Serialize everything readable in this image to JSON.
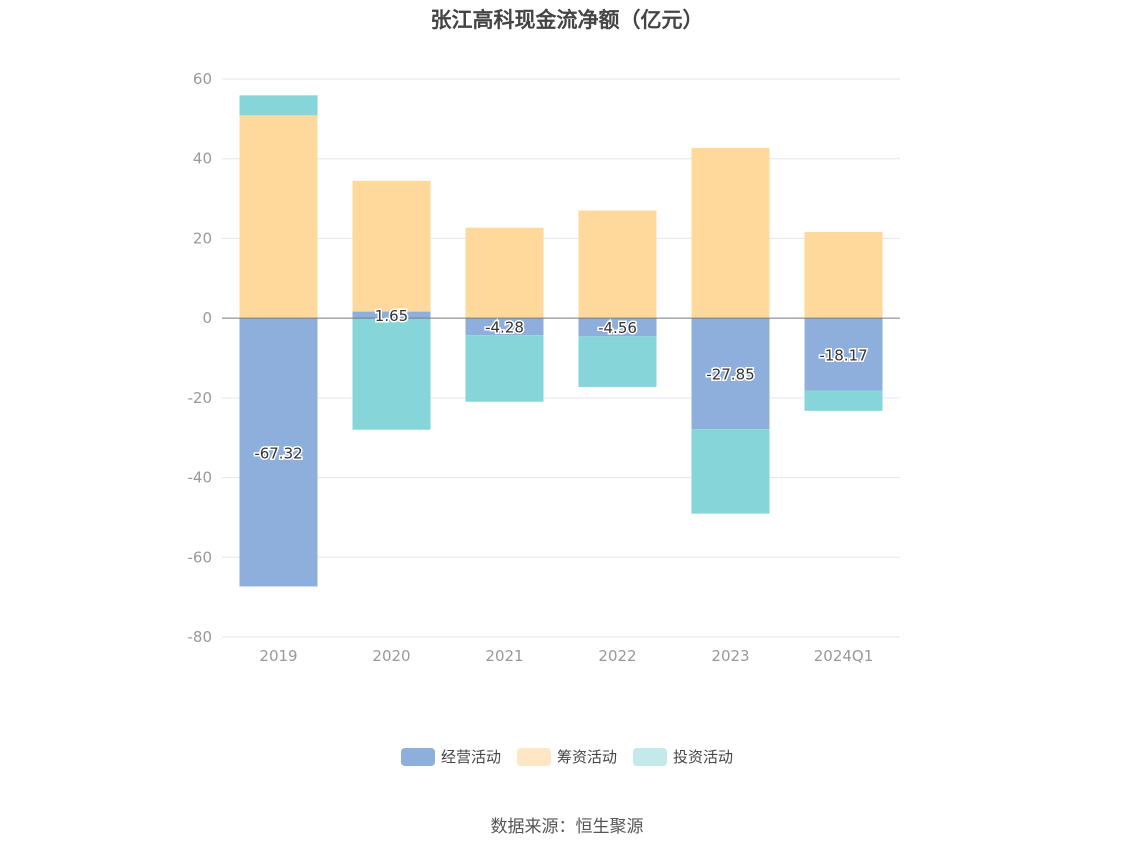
{
  "chart_data": {
    "type": "bar",
    "stacked": true,
    "title": "张江高科现金流净额（亿元）",
    "categories": [
      "2019",
      "2020",
      "2021",
      "2022",
      "2023",
      "2024Q1"
    ],
    "series": [
      {
        "name": "经营活动",
        "color": "#8eaedb",
        "values": [
          -67.32,
          1.65,
          -4.28,
          -4.56,
          -27.85,
          -18.17
        ],
        "show_labels": true
      },
      {
        "name": "筹资活动",
        "color": "#ffd99c",
        "values": [
          50.9,
          32.8,
          22.7,
          27.0,
          42.7,
          21.6
        ],
        "show_labels": false
      },
      {
        "name": "投资活动",
        "color": "#86d6d9",
        "values": [
          5.0,
          -28.0,
          -16.7,
          -12.7,
          -21.2,
          -5.1
        ],
        "show_labels": false
      }
    ],
    "legend_colors": [
      "#8eaedb",
      "#ffe6c4",
      "#c3e9ea"
    ],
    "yticks": [
      60,
      40,
      20,
      0,
      -20,
      -40,
      -60,
      -80
    ],
    "ylim": [
      -80,
      60
    ],
    "grid": true,
    "legend_position": "bottom"
  },
  "source": "数据来源：恒生聚源"
}
